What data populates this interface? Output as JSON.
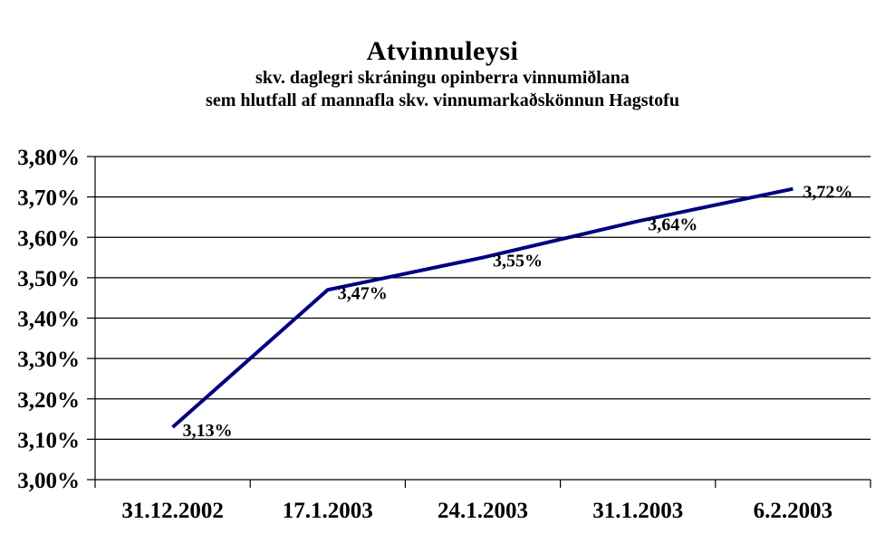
{
  "header": {
    "title": "Atvinnuleysi",
    "subtitle1": "skv. daglegri skráningu opinberra vinnumiðlana",
    "subtitle2": "sem hlutfall af mannafla skv. vinnumarkaðskönnun Hagstofu"
  },
  "colors": {
    "line": "#000080",
    "grid": "#000000",
    "text": "#000000",
    "background": "#ffffff"
  },
  "chart_data": {
    "type": "line",
    "title": "Atvinnuleysi",
    "subtitle": [
      "skv. daglegri skráningu opinberra vinnumiðlana",
      "sem hlutfall af mannafla skv. vinnumarkaðskönnun Hagstofu"
    ],
    "categories": [
      "31.12.2002",
      "17.1.2003",
      "24.1.2003",
      "31.1.2003",
      "6.2.2003"
    ],
    "series": [
      {
        "name": "Atvinnuleysi",
        "values": [
          3.13,
          3.47,
          3.55,
          3.64,
          3.72
        ],
        "point_labels": [
          "3,13%",
          "3,47%",
          "3,55%",
          "3,64%",
          "3,72%"
        ],
        "color": "#000080"
      }
    ],
    "ylim": [
      3.0,
      3.8
    ],
    "y_tick_step": 0.1,
    "y_tick_labels": [
      "3,00%",
      "3,10%",
      "3,20%",
      "3,30%",
      "3,40%",
      "3,50%",
      "3,60%",
      "3,70%",
      "3,80%"
    ],
    "xlabel": "",
    "ylabel": "",
    "grid": "horizontal",
    "legend": "none",
    "markers": "none"
  }
}
